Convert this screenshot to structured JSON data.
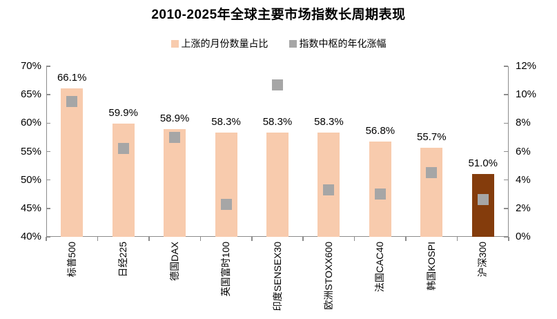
{
  "title": "2010-2025年全球主要市场指数长周期表现",
  "legend": [
    {
      "label": "上涨的月份数量占比",
      "color": "#F8CBAD"
    },
    {
      "label": "指数中枢的年化涨幅",
      "color": "#A6A6A6"
    }
  ],
  "chart_data": {
    "type": "bar",
    "title": "2010-2025年全球主要市场指数长周期表现",
    "categories": [
      "标普500",
      "日经225",
      "德国DAX",
      "英国富时100",
      "印度SENSEX30",
      "欧洲STOXX600",
      "法国CAC40",
      "韩国KOSPI",
      "沪深300"
    ],
    "series": [
      {
        "name": "上涨的月份数量占比",
        "type": "bar",
        "axis": "left",
        "values": [
          66.1,
          59.9,
          58.9,
          58.3,
          58.3,
          58.3,
          56.8,
          55.7,
          51.0
        ],
        "labels": [
          "66.1%",
          "59.9%",
          "58.9%",
          "58.3%",
          "58.3%",
          "58.3%",
          "56.8%",
          "55.7%",
          "51.0%"
        ]
      },
      {
        "name": "指数中枢的年化涨幅",
        "type": "scatter-square",
        "axis": "right",
        "values": [
          9.5,
          6.2,
          7.0,
          2.3,
          10.7,
          3.3,
          3.0,
          4.5,
          2.6
        ]
      }
    ],
    "left_axis": {
      "min": 40,
      "max": 70,
      "tick_labels": [
        "70%",
        "65%",
        "60%",
        "55%",
        "50%",
        "45%",
        "40%"
      ]
    },
    "right_axis": {
      "min": 0,
      "max": 12,
      "tick_labels": [
        "12%",
        "10%",
        "8%",
        "6%",
        "4%",
        "2%",
        "0%"
      ]
    },
    "bar_colors": [
      "#F8CBAD",
      "#F8CBAD",
      "#F8CBAD",
      "#F8CBAD",
      "#F8CBAD",
      "#F8CBAD",
      "#F8CBAD",
      "#F8CBAD",
      "#843C0C"
    ],
    "marker_color": "#A6A6A6",
    "grid": false,
    "legend_position": "top"
  }
}
